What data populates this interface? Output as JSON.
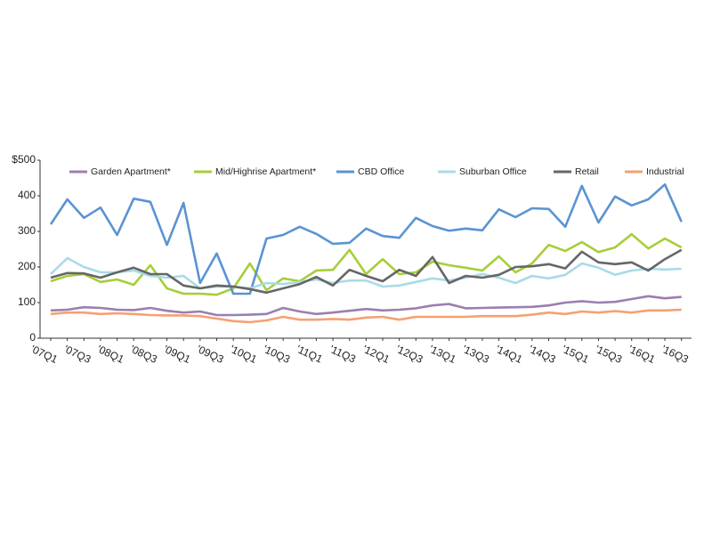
{
  "chart_data": {
    "type": "line",
    "categories": [
      "'07Q1",
      null,
      "'07Q3",
      null,
      "'08Q1",
      null,
      "'08Q3",
      null,
      "'09Q1",
      null,
      "'09Q3",
      null,
      "'10Q1",
      null,
      "'10Q3",
      null,
      "'11Q1",
      null,
      "'11Q3",
      null,
      "'12Q1",
      null,
      "'12Q3",
      null,
      "'13Q1",
      null,
      "'13Q3",
      null,
      "'14Q1",
      null,
      "'14Q3",
      null,
      "'15Q1",
      null,
      "'15Q3",
      null,
      "'16Q1",
      null,
      "'16Q3"
    ],
    "series": [
      {
        "name": "Garden Apartment*",
        "color": "#9b7fb0",
        "values": [
          78,
          80,
          87,
          85,
          80,
          79,
          85,
          77,
          72,
          75,
          65,
          65,
          66,
          68,
          85,
          75,
          68,
          72,
          77,
          82,
          78,
          80,
          84,
          92,
          96,
          84,
          85,
          86,
          87,
          88,
          92,
          100,
          104,
          100,
          102,
          110,
          118,
          112,
          116
        ]
      },
      {
        "name": "Mid/Highrise Apartment*",
        "color": "#a6ce39",
        "values": [
          160,
          175,
          180,
          158,
          165,
          150,
          205,
          140,
          125,
          125,
          122,
          140,
          210,
          135,
          168,
          160,
          190,
          192,
          248,
          180,
          222,
          180,
          185,
          215,
          205,
          198,
          190,
          230,
          185,
          210,
          262,
          245,
          270,
          242,
          255,
          292,
          252,
          280,
          255
        ]
      },
      {
        "name": "CBD Office",
        "color": "#5b93d3",
        "values": [
          320,
          390,
          338,
          367,
          290,
          392,
          383,
          262,
          380,
          155,
          238,
          125,
          125,
          280,
          290,
          313,
          293,
          265,
          268,
          308,
          287,
          282,
          338,
          315,
          302,
          308,
          303,
          362,
          340,
          365,
          363,
          313,
          428,
          325,
          398,
          373,
          390,
          432,
          327
        ]
      },
      {
        "name": "Suburban Office",
        "color": "#a8dbe8",
        "values": [
          180,
          225,
          200,
          185,
          185,
          190,
          175,
          170,
          175,
          140,
          145,
          145,
          140,
          155,
          152,
          158,
          165,
          155,
          162,
          162,
          145,
          148,
          158,
          168,
          162,
          170,
          180,
          170,
          155,
          175,
          168,
          178,
          210,
          198,
          178,
          190,
          195,
          193,
          195
        ]
      },
      {
        "name": "Retail",
        "color": "#666666",
        "values": [
          170,
          183,
          182,
          170,
          185,
          198,
          180,
          180,
          148,
          140,
          148,
          145,
          138,
          128,
          140,
          152,
          172,
          148,
          192,
          175,
          160,
          192,
          175,
          228,
          155,
          175,
          170,
          178,
          200,
          202,
          208,
          196,
          243,
          213,
          208,
          213,
          190,
          222,
          248
        ]
      },
      {
        "name": "Industrial",
        "color": "#f4a172",
        "values": [
          68,
          72,
          72,
          68,
          70,
          68,
          65,
          64,
          64,
          62,
          55,
          48,
          45,
          50,
          60,
          52,
          52,
          54,
          52,
          58,
          60,
          52,
          60,
          60,
          60,
          60,
          62,
          62,
          62,
          66,
          72,
          68,
          75,
          72,
          76,
          72,
          78,
          78,
          80
        ]
      }
    ],
    "ylim": [
      0,
      500
    ],
    "yticks": [
      0,
      100,
      200,
      300,
      400,
      {
        "value": 500,
        "label": "$500"
      }
    ]
  }
}
